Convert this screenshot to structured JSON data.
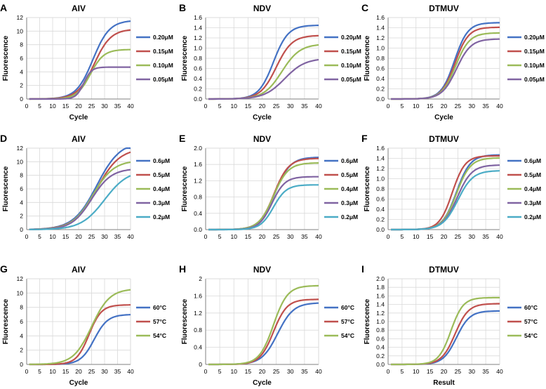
{
  "figure": {
    "colors": {
      "blue": "#4472C4",
      "red": "#C0504D",
      "green": "#9BBB59",
      "purple": "#8064A2",
      "cyan": "#4BACC6",
      "grid": "#D9D9D9",
      "axis": "#808080"
    }
  },
  "chart_data": [
    {
      "id": "A",
      "type": "line",
      "panel_letter": "A",
      "title": "AIV",
      "xlabel": "Cycle",
      "ylabel": "Fluorescence",
      "xlim": [
        0,
        40
      ],
      "xticks": [
        0,
        5,
        10,
        15,
        20,
        25,
        30,
        35,
        40
      ],
      "ylim": [
        0,
        12
      ],
      "yticks": [
        0,
        2,
        4,
        6,
        8,
        10,
        12
      ],
      "ytick_labels": [
        "0",
        "2",
        "4",
        "6",
        "8",
        "10",
        "12"
      ],
      "grid": true,
      "legend_position": "right",
      "series": [
        {
          "name": "0.20μM",
          "color": "blue",
          "plateau": 11.6,
          "midpoint": 25.5,
          "slope": 3.2
        },
        {
          "name": "0.15μM",
          "color": "red",
          "plateau": 10.3,
          "midpoint": 26.0,
          "slope": 3.2
        },
        {
          "name": "0.10μM",
          "color": "green",
          "plateau": 7.3,
          "midpoint": 24.5,
          "slope": 2.6
        },
        {
          "name": "0.05μM",
          "color": "purple",
          "plateau": 4.7,
          "midpoint": 22.0,
          "slope": 1.5
        }
      ]
    },
    {
      "id": "B",
      "type": "line",
      "panel_letter": "B",
      "title": "NDV",
      "xlabel": "Cycle",
      "ylabel": "Fluorescence",
      "xlim": [
        0,
        40
      ],
      "xticks": [
        0,
        5,
        10,
        15,
        20,
        25,
        30,
        35,
        40
      ],
      "ylim": [
        0,
        1.6
      ],
      "yticks": [
        0,
        0.2,
        0.4,
        0.6,
        0.8,
        1.0,
        1.2,
        1.4,
        1.6
      ],
      "ytick_labels": [
        "0.0",
        "0.2",
        "0.4",
        "0.6",
        "0.8",
        "1.0",
        "1.2",
        "1.4",
        "1.6"
      ],
      "grid": true,
      "legend_position": "right",
      "series": [
        {
          "name": "0.20μM",
          "color": "blue",
          "plateau": 1.45,
          "midpoint": 24.0,
          "slope": 2.6
        },
        {
          "name": "0.15μM",
          "color": "red",
          "plateau": 1.25,
          "midpoint": 25.0,
          "slope": 2.8
        },
        {
          "name": "0.10μM",
          "color": "green",
          "plateau": 1.08,
          "midpoint": 27.0,
          "slope": 3.2
        },
        {
          "name": "0.05μM",
          "color": "purple",
          "plateau": 0.8,
          "midpoint": 28.0,
          "slope": 3.6
        }
      ]
    },
    {
      "id": "C",
      "type": "line",
      "panel_letter": "C",
      "title": "DTMUV",
      "xlabel": "Cycle",
      "ylabel": "Fluorescence",
      "xlim": [
        0,
        40
      ],
      "xticks": [
        0,
        5,
        10,
        15,
        20,
        25,
        30,
        35,
        40
      ],
      "ylim": [
        0,
        1.6
      ],
      "yticks": [
        0,
        0.2,
        0.4,
        0.6,
        0.8,
        1.0,
        1.2,
        1.4,
        1.6
      ],
      "ytick_labels": [
        "0.0",
        "0.2",
        "0.4",
        "0.6",
        "0.8",
        "1.0",
        "1.2",
        "1.4",
        "1.6"
      ],
      "grid": true,
      "legend_position": "right",
      "series": [
        {
          "name": "0.20μM",
          "color": "blue",
          "plateau": 1.5,
          "midpoint": 23.8,
          "slope": 2.4
        },
        {
          "name": "0.15μM",
          "color": "red",
          "plateau": 1.41,
          "midpoint": 24.0,
          "slope": 2.4
        },
        {
          "name": "0.10μM",
          "color": "green",
          "plateau": 1.3,
          "midpoint": 24.2,
          "slope": 2.5
        },
        {
          "name": "0.05μM",
          "color": "purple",
          "plateau": 1.18,
          "midpoint": 24.5,
          "slope": 2.6
        }
      ]
    },
    {
      "id": "D",
      "type": "line",
      "panel_letter": "D",
      "title": "AIV",
      "xlabel": "",
      "ylabel": "Fluorescence",
      "xlim": [
        0,
        40
      ],
      "xticks": [
        0,
        5,
        10,
        15,
        20,
        25,
        30,
        35,
        40
      ],
      "ylim": [
        0,
        12
      ],
      "yticks": [
        0,
        2,
        4,
        6,
        8,
        10,
        12
      ],
      "ytick_labels": [
        "0",
        "2",
        "4",
        "6",
        "8",
        "10",
        "12"
      ],
      "grid": true,
      "legend_position": "right",
      "series": [
        {
          "name": "0.6μM",
          "color": "blue",
          "plateau": 13.0,
          "midpoint": 27.0,
          "slope": 4.5
        },
        {
          "name": "0.5μM",
          "color": "red",
          "plateau": 12.0,
          "midpoint": 27.0,
          "slope": 4.4
        },
        {
          "name": "0.4μM",
          "color": "green",
          "plateau": 10.2,
          "midpoint": 25.5,
          "slope": 4.0
        },
        {
          "name": "0.3μM",
          "color": "purple",
          "plateau": 9.0,
          "midpoint": 25.0,
          "slope": 3.8
        },
        {
          "name": "0.2μM",
          "color": "cyan",
          "plateau": 8.8,
          "midpoint": 30.0,
          "slope": 4.5
        }
      ]
    },
    {
      "id": "E",
      "type": "line",
      "panel_letter": "E",
      "title": "NDV",
      "xlabel": "",
      "ylabel": "Fluorescence",
      "xlim": [
        0,
        40
      ],
      "xticks": [
        0,
        5,
        10,
        15,
        20,
        25,
        30,
        35,
        40
      ],
      "ylim": [
        0,
        2.0
      ],
      "yticks": [
        0,
        0.4,
        0.8,
        1.2,
        1.6,
        2.0
      ],
      "ytick_labels": [
        "0.0",
        "0.4",
        "0.8",
        "1.2",
        "1.6",
        "2.0"
      ],
      "grid": true,
      "legend_position": "right",
      "series": [
        {
          "name": "0.6μM",
          "color": "blue",
          "plateau": 1.78,
          "midpoint": 24.5,
          "slope": 2.7
        },
        {
          "name": "0.5μM",
          "color": "red",
          "plateau": 1.75,
          "midpoint": 24.2,
          "slope": 2.6
        },
        {
          "name": "0.4μM",
          "color": "green",
          "plateau": 1.64,
          "midpoint": 24.0,
          "slope": 2.6
        },
        {
          "name": "0.3μM",
          "color": "purple",
          "plateau": 1.3,
          "midpoint": 23.5,
          "slope": 2.3
        },
        {
          "name": "0.2μM",
          "color": "cyan",
          "plateau": 1.1,
          "midpoint": 24.0,
          "slope": 2.3
        }
      ]
    },
    {
      "id": "F",
      "type": "line",
      "panel_letter": "F",
      "title": "DTMUV",
      "xlabel": "",
      "ylabel": "Fluorescence",
      "xlim": [
        0,
        40
      ],
      "xticks": [
        0,
        5,
        10,
        15,
        20,
        25,
        30,
        35,
        40
      ],
      "ylim": [
        0,
        1.6
      ],
      "yticks": [
        0,
        0.2,
        0.4,
        0.6,
        0.8,
        1.0,
        1.2,
        1.4,
        1.6
      ],
      "ytick_labels": [
        "0.0",
        "0.2",
        "0.4",
        "0.6",
        "0.8",
        "1.0",
        "1.2",
        "1.4",
        "1.6"
      ],
      "grid": true,
      "legend_position": "right",
      "series": [
        {
          "name": "0.6μM",
          "color": "blue",
          "plateau": 1.47,
          "midpoint": 24.5,
          "slope": 2.5
        },
        {
          "name": "0.5μM",
          "color": "red",
          "plateau": 1.45,
          "midpoint": 23.0,
          "slope": 2.3
        },
        {
          "name": "0.4μM",
          "color": "green",
          "plateau": 1.41,
          "midpoint": 24.5,
          "slope": 2.5
        },
        {
          "name": "0.3μM",
          "color": "purple",
          "plateau": 1.27,
          "midpoint": 24.8,
          "slope": 2.6
        },
        {
          "name": "0.2μM",
          "color": "cyan",
          "plateau": 1.16,
          "midpoint": 25.0,
          "slope": 2.7
        }
      ]
    },
    {
      "id": "G",
      "type": "line",
      "panel_letter": "G",
      "title": "AIV",
      "xlabel": "Cycle",
      "ylabel": "Fluorescence",
      "xlim": [
        0,
        40
      ],
      "xticks": [
        0,
        5,
        10,
        15,
        20,
        25,
        30,
        35,
        40
      ],
      "ylim": [
        0,
        12
      ],
      "yticks": [
        0,
        2,
        4,
        6,
        8,
        10,
        12
      ],
      "ytick_labels": [
        "0",
        "2",
        "4",
        "6",
        "8",
        "10",
        "12"
      ],
      "grid": true,
      "legend_position": "right",
      "series": [
        {
          "name": "60°C",
          "color": "blue",
          "plateau": 7.0,
          "midpoint": 26.0,
          "slope": 2.6
        },
        {
          "name": "57°C",
          "color": "red",
          "plateau": 8.35,
          "midpoint": 24.0,
          "slope": 2.4
        },
        {
          "name": "54°C",
          "color": "green",
          "plateau": 10.6,
          "midpoint": 25.0,
          "slope": 3.5
        }
      ]
    },
    {
      "id": "H",
      "type": "line",
      "panel_letter": "H",
      "title": "NDV",
      "xlabel": "Cycle",
      "ylabel": "Fluorescence",
      "xlim": [
        0,
        40
      ],
      "xticks": [
        0,
        5,
        10,
        15,
        20,
        25,
        30,
        35,
        40
      ],
      "ylim": [
        0,
        2
      ],
      "yticks": [
        0,
        0.4,
        0.8,
        1.2,
        1.6,
        2
      ],
      "ytick_labels": [
        "0",
        "0.4",
        "0.8",
        "1.2",
        "1.6",
        "2"
      ],
      "grid": true,
      "legend_position": "right",
      "series": [
        {
          "name": "60°C",
          "color": "blue",
          "plateau": 1.44,
          "midpoint": 25.5,
          "slope": 2.8
        },
        {
          "name": "57°C",
          "color": "red",
          "plateau": 1.52,
          "midpoint": 24.0,
          "slope": 2.4
        },
        {
          "name": "54°C",
          "color": "green",
          "plateau": 1.84,
          "midpoint": 24.0,
          "slope": 2.5
        }
      ]
    },
    {
      "id": "I",
      "type": "line",
      "panel_letter": "I",
      "title": "DTMUV",
      "xlabel": "Result",
      "ylabel": "Fluorescence",
      "xlim": [
        0,
        40
      ],
      "xticks": [
        0,
        5,
        10,
        15,
        20,
        25,
        30,
        35,
        40
      ],
      "ylim": [
        0,
        2.0
      ],
      "yticks": [
        0,
        0.2,
        0.4,
        0.6,
        0.8,
        1.0,
        1.2,
        1.4,
        1.6,
        1.8,
        2.0
      ],
      "ytick_labels": [
        "0.0",
        "0.2",
        "0.4",
        "0.6",
        "0.8",
        "1.0",
        "1.2",
        "1.4",
        "1.6",
        "1.8",
        "2.0"
      ],
      "grid": true,
      "legend_position": "right",
      "series": [
        {
          "name": "60°C",
          "color": "blue",
          "plateau": 1.25,
          "midpoint": 24.5,
          "slope": 2.4
        },
        {
          "name": "57°C",
          "color": "red",
          "plateau": 1.42,
          "midpoint": 24.0,
          "slope": 2.4
        },
        {
          "name": "54°C",
          "color": "green",
          "plateau": 1.56,
          "midpoint": 22.5,
          "slope": 2.2
        }
      ]
    }
  ]
}
